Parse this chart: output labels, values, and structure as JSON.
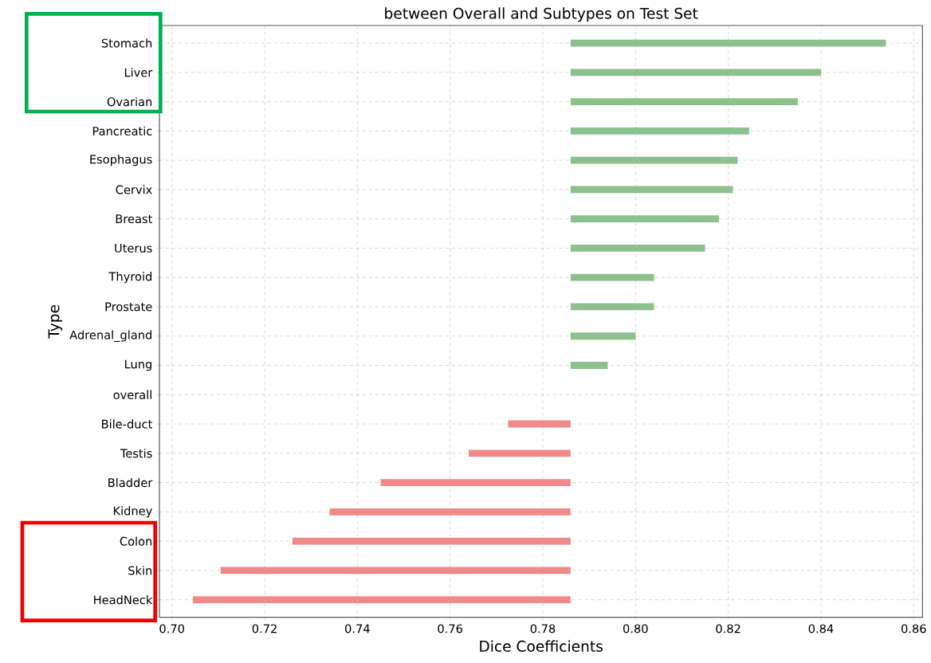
{
  "chart_data": {
    "type": "bar",
    "orientation": "horizontal",
    "title": "between Overall and Subtypes on Test Set",
    "xlabel": "Dice Coefficients",
    "ylabel": "Type",
    "categories": [
      "Stomach",
      "Liver",
      "Ovarian",
      "Pancreatic",
      "Esophagus",
      "Cervix",
      "Breast",
      "Uterus",
      "Thyroid",
      "Prostate",
      "Adrenal_gland",
      "Lung",
      "overall",
      "Bile-duct",
      "Testis",
      "Bladder",
      "Kidney",
      "Colon",
      "Skin",
      "HeadNeck"
    ],
    "base": [
      0.786,
      0.786,
      0.786,
      0.786,
      0.786,
      0.786,
      0.786,
      0.786,
      0.786,
      0.786,
      0.786,
      0.786,
      null,
      0.786,
      0.786,
      0.786,
      0.786,
      0.786,
      0.786,
      0.786
    ],
    "values": [
      0.068,
      0.054,
      0.049,
      0.0385,
      0.036,
      0.035,
      0.032,
      0.029,
      0.018,
      0.018,
      0.014,
      0.008,
      null,
      -0.0135,
      -0.022,
      -0.041,
      -0.052,
      -0.06,
      -0.0755,
      -0.0815
    ],
    "colors": [
      "#8cc08c",
      "#8cc08c",
      "#8cc08c",
      "#8cc08c",
      "#8cc08c",
      "#8cc08c",
      "#8cc08c",
      "#8cc08c",
      "#8cc08c",
      "#8cc08c",
      "#8cc08c",
      "#8cc08c",
      "#8cc08c",
      "#f08a8a",
      "#f08a8a",
      "#f08a8a",
      "#f08a8a",
      "#f08a8a",
      "#f08a8a",
      "#f08a8a"
    ],
    "xlim": [
      0.6973,
      0.8619
    ],
    "xticks": [
      {
        "value": 0.7,
        "label": "0.70"
      },
      {
        "value": 0.72,
        "label": "0.72"
      },
      {
        "value": 0.74,
        "label": "0.74"
      },
      {
        "value": 0.76,
        "label": "0.76"
      },
      {
        "value": 0.78,
        "label": "0.78"
      },
      {
        "value": 0.8,
        "label": "0.80"
      },
      {
        "value": 0.82,
        "label": "0.82"
      },
      {
        "value": 0.84,
        "label": "0.84"
      },
      {
        "value": 0.86,
        "label": "0.86"
      }
    ],
    "grid": true
  }
}
